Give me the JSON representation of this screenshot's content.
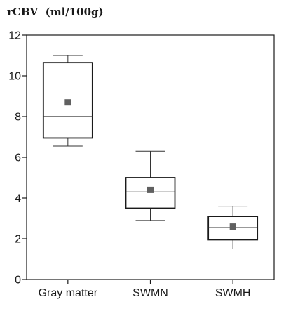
{
  "chart_data": {
    "type": "boxplot",
    "ylabel": "rCBV  (ml/100g)",
    "ylim": [
      0,
      12
    ],
    "yticks": [
      0,
      2,
      4,
      6,
      8,
      10,
      12
    ],
    "categories": [
      "Gray matter",
      "SWMN",
      "SWMH"
    ],
    "boxes": [
      {
        "category": "Gray matter",
        "whisker_low": 6.55,
        "q1": 6.95,
        "median": 8.0,
        "q3": 10.65,
        "whisker_high": 11.0,
        "mean": 8.7
      },
      {
        "category": "SWMN",
        "whisker_low": 2.9,
        "q1": 3.5,
        "median": 4.3,
        "q3": 5.0,
        "whisker_high": 6.3,
        "mean": 4.4
      },
      {
        "category": "SWMH",
        "whisker_low": 1.5,
        "q1": 1.95,
        "median": 2.55,
        "q3": 3.1,
        "whisker_high": 3.6,
        "mean": 2.6
      }
    ],
    "grid": false,
    "legend": "none",
    "colors": {
      "mean_marker": "#606060",
      "box_stroke": "#1a1a1a"
    }
  }
}
